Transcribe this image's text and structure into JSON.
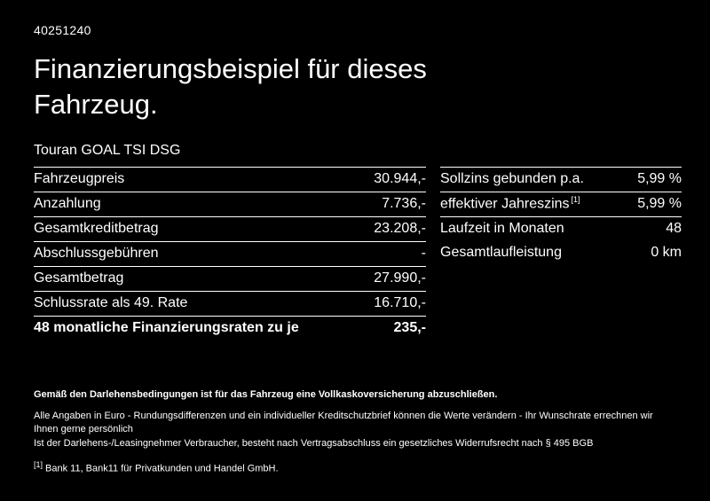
{
  "theme": {
    "background": "#000000",
    "text": "#ffffff",
    "rule_color": "#ffffff"
  },
  "header": {
    "doc_id": "40251240",
    "title": "Finanzierungsbeispiel für dieses Fahrzeug.",
    "model": "Touran GOAL TSI DSG"
  },
  "left_table": {
    "rows": [
      {
        "label": "Fahrzeugpreis",
        "value": "30.944,-"
      },
      {
        "label": "Anzahlung",
        "value": "7.736,-"
      },
      {
        "label": "Gesamtkreditbetrag",
        "value": "23.208,-"
      },
      {
        "label": "Abschlussgebühren",
        "value": "-"
      },
      {
        "label": "Gesamtbetrag",
        "value": "27.990,-"
      },
      {
        "label": "Schlussrate als 49. Rate",
        "value": "16.710,-"
      },
      {
        "label": "48 monatliche Finanzierungsraten zu je",
        "value": "235,-"
      }
    ]
  },
  "right_table": {
    "rows": [
      {
        "label": "Sollzins gebunden p.a.",
        "value": "5,99 %"
      },
      {
        "label": "effektiver Jahreszins",
        "sup": "[1]",
        "value": "5,99 %"
      },
      {
        "label": "Laufzeit in Monaten",
        "value": "48"
      },
      {
        "label": "Gesamtlaufleistung",
        "value": "0 km"
      }
    ]
  },
  "footer": {
    "line1": "Gemäß den Darlehensbedingungen ist für das Fahrzeug eine Vollkaskoversicherung abzuschließen.",
    "line2": "Alle Angaben in Euro - Rundungsdifferenzen und ein individueller Kreditschutzbrief können die Werte verändern - Ihr Wunschrate errechnen wir Ihnen gerne persönlich",
    "line3": "Ist der Darlehens-/Leasingnehmer Verbraucher, besteht nach Vertragsabschluss ein gesetzliches Widerrufsrecht nach § 495 BGB",
    "footnote_marker": "[1]",
    "footnote_text": "Bank 11, Bank11 für Privatkunden und Handel GmbH."
  }
}
